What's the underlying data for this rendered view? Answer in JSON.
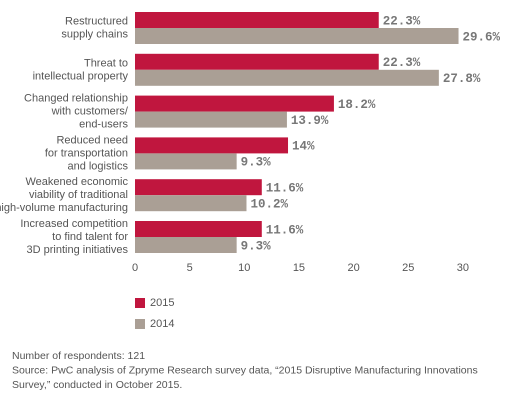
{
  "chart_data": {
    "type": "bar",
    "orientation": "horizontal",
    "categories": [
      [
        "Restructured",
        "supply chains"
      ],
      [
        "Threat to",
        "intellectual property"
      ],
      [
        "Changed relationship",
        "with customers/",
        "end-users"
      ],
      [
        "Reduced need",
        "for transportation",
        "and logistics"
      ],
      [
        "Weakened economic",
        "viability of traditional",
        "high-volume manufacturing"
      ],
      [
        "Increased competition",
        "to find talent for",
        "3D printing initiatives"
      ]
    ],
    "series": [
      {
        "name": "2015",
        "color": "#c0163e",
        "values": [
          22.3,
          22.3,
          18.2,
          14,
          11.6,
          11.6
        ],
        "value_labels": [
          "22.3%",
          "22.3%",
          "18.2%",
          "14%",
          "11.6%",
          "11.6%"
        ]
      },
      {
        "name": "2014",
        "color": "#aa9f95",
        "values": [
          29.6,
          27.8,
          13.9,
          9.3,
          10.2,
          9.3
        ],
        "value_labels": [
          "29.6%",
          "27.8%",
          "13.9%",
          "9.3%",
          "10.2%",
          "9.3%"
        ]
      }
    ],
    "xlim": [
      0,
      30
    ],
    "xticks": [
      0,
      5,
      10,
      15,
      20,
      25,
      30
    ],
    "grid": false,
    "notes": [
      "Number of respondents: 121",
      "Source: PwC analysis of Zpryme Research survey data, “2015 Disruptive Manufacturing Innovations",
      "Survey,” conducted in October 2015."
    ]
  }
}
